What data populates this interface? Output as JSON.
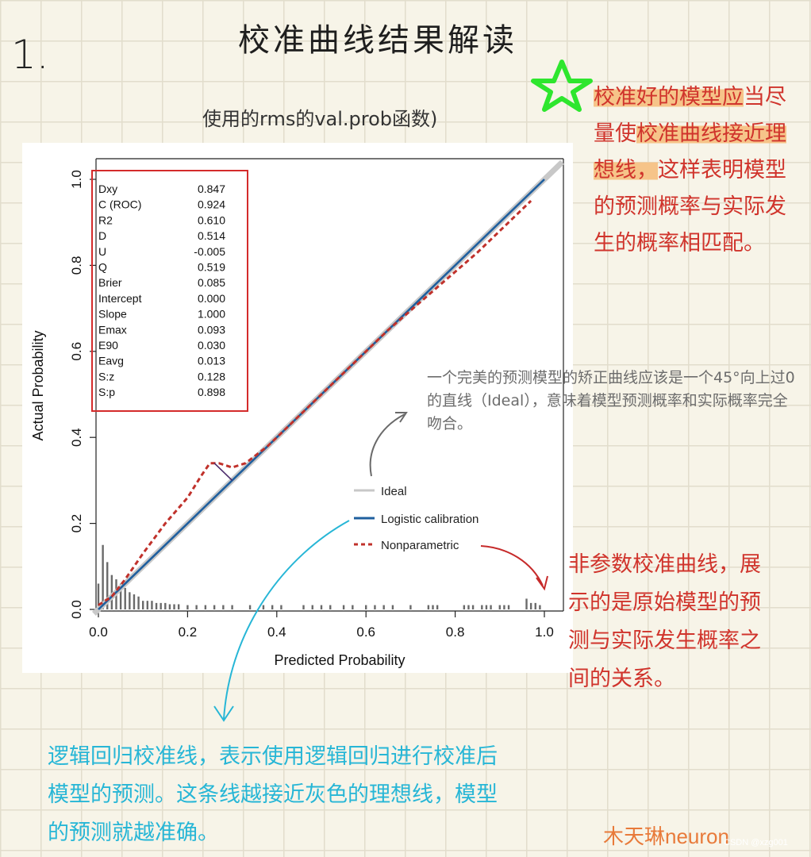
{
  "page": {
    "number": "1.",
    "title": "校准曲线结果解读",
    "subtitle": "使用的rms的val.prob函数)",
    "colors": {
      "red_note": "#d0342c",
      "cyan_note": "#27b6d6",
      "grey_note": "#6c6c6c",
      "highlight": "#f6c489",
      "star": "#2ee62e"
    }
  },
  "notes": {
    "good_model": {
      "p1": "校准好的模型应",
      "p2": "当尽量使",
      "p3": "校准曲",
      "p4": "线接近理想线，",
      "p5": "这样表明模型的预测概率与实际发生的概率相匹配。"
    },
    "ideal": "一个完美的预测模型的矫正曲线应该是一个45°向上过0的直线（Ideal），意味着模型预测概率和实际概率完全吻合。",
    "nonparametric": "非参数校准曲线，展示的是原始模型的预测与实际发生概率之间的关系。",
    "logistic": "逻辑回归校准线，表示使用逻辑回归进行校准后模型的预测。这条线越接近灰色的理想线，模型的预测就越准确。"
  },
  "watermarks": {
    "author": "木天琳neuron",
    "csdn": "CSDN @xzg001"
  },
  "chart_data": {
    "type": "line",
    "xlabel": "Predicted Probability",
    "ylabel": "Actual Probability",
    "xlim": [
      0,
      1
    ],
    "ylim": [
      0,
      1
    ],
    "xticks": [
      "0.0",
      "0.2",
      "0.4",
      "0.6",
      "0.8",
      "1.0"
    ],
    "yticks": [
      "0.0",
      "0.2",
      "0.4",
      "0.6",
      "0.8",
      "1.0"
    ],
    "grid": false,
    "legend": "lower-right",
    "stats": [
      {
        "label": "Dxy",
        "value": "0.847"
      },
      {
        "label": "C (ROC)",
        "value": "0.924"
      },
      {
        "label": "R2",
        "value": "0.610"
      },
      {
        "label": "D",
        "value": "0.514"
      },
      {
        "label": "U",
        "value": "-0.005"
      },
      {
        "label": "Q",
        "value": "0.519"
      },
      {
        "label": "Brier",
        "value": "0.085"
      },
      {
        "label": "Intercept",
        "value": "0.000"
      },
      {
        "label": "Slope",
        "value": "1.000"
      },
      {
        "label": "Emax",
        "value": "0.093"
      },
      {
        "label": "E90",
        "value": "0.030"
      },
      {
        "label": "Eavg",
        "value": "0.013"
      },
      {
        "label": "S:z",
        "value": "0.128"
      },
      {
        "label": "S:p",
        "value": "0.898"
      }
    ],
    "series": [
      {
        "name": "Ideal",
        "color": "#c8c8c8",
        "style": "solid",
        "x": [
          0,
          1
        ],
        "y": [
          0,
          1
        ]
      },
      {
        "name": "Logistic calibration",
        "color": "#1f5f9e",
        "style": "solid",
        "x": [
          0,
          1
        ],
        "y": [
          0,
          1
        ]
      },
      {
        "name": "Nonparametric",
        "color": "#c0312b",
        "style": "dashed",
        "x": [
          0.0,
          0.03,
          0.06,
          0.1,
          0.15,
          0.2,
          0.23,
          0.25,
          0.27,
          0.3,
          0.33,
          0.38,
          0.45,
          0.55,
          0.65,
          0.75,
          0.85,
          0.92,
          0.97
        ],
        "y": [
          0.01,
          0.03,
          0.07,
          0.13,
          0.2,
          0.26,
          0.31,
          0.34,
          0.34,
          0.33,
          0.34,
          0.38,
          0.45,
          0.55,
          0.65,
          0.74,
          0.83,
          0.9,
          0.95
        ]
      }
    ],
    "emax_segment": {
      "x": [
        0.26,
        0.3
      ],
      "y": [
        0.34,
        0.3
      ]
    },
    "histogram": {
      "x": [
        0.0,
        0.01,
        0.02,
        0.03,
        0.04,
        0.05,
        0.06,
        0.07,
        0.08,
        0.09,
        0.1,
        0.11,
        0.12,
        0.13,
        0.14,
        0.15,
        0.16,
        0.17,
        0.18,
        0.2,
        0.22,
        0.24,
        0.26,
        0.28,
        0.3,
        0.34,
        0.37,
        0.39,
        0.41,
        0.46,
        0.48,
        0.5,
        0.52,
        0.55,
        0.57,
        0.6,
        0.62,
        0.64,
        0.66,
        0.7,
        0.74,
        0.75,
        0.76,
        0.82,
        0.83,
        0.84,
        0.86,
        0.87,
        0.88,
        0.9,
        0.91,
        0.92,
        0.96,
        0.97,
        0.98,
        0.99
      ],
      "y": [
        0.06,
        0.15,
        0.11,
        0.08,
        0.07,
        0.06,
        0.05,
        0.04,
        0.035,
        0.03,
        0.02,
        0.02,
        0.02,
        0.015,
        0.015,
        0.015,
        0.012,
        0.012,
        0.012,
        0.01,
        0.01,
        0.01,
        0.01,
        0.01,
        0.01,
        0.01,
        0.01,
        0.01,
        0.01,
        0.01,
        0.01,
        0.01,
        0.01,
        0.01,
        0.01,
        0.01,
        0.01,
        0.01,
        0.01,
        0.01,
        0.01,
        0.01,
        0.01,
        0.01,
        0.01,
        0.01,
        0.01,
        0.01,
        0.01,
        0.01,
        0.01,
        0.01,
        0.025,
        0.015,
        0.015,
        0.01
      ]
    }
  }
}
